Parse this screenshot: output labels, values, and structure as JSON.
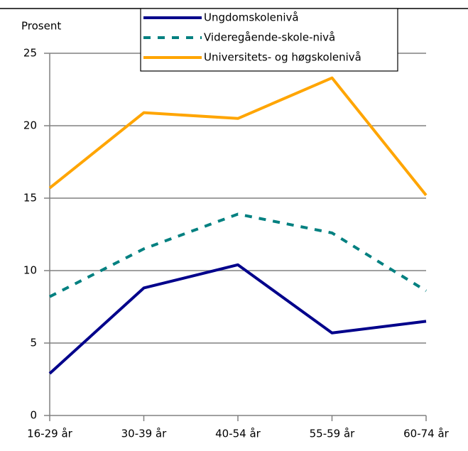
{
  "chart_data": {
    "type": "line",
    "y_label": "Prosent",
    "categories": [
      "16-29 år",
      "30-39 år",
      "40-54 år",
      "55-59 år",
      "60-74 år"
    ],
    "series": [
      {
        "name": "Ungdomskolenivå",
        "color": "#00008b",
        "dash": false,
        "values": [
          2.9,
          8.8,
          10.4,
          5.7,
          6.5
        ]
      },
      {
        "name": "Videregående-skole-nivå",
        "color": "#008080",
        "dash": true,
        "values": [
          8.2,
          11.5,
          13.9,
          12.6,
          8.6
        ]
      },
      {
        "name": "Universitets- og høgskolenivå",
        "color": "#ffa500",
        "dash": false,
        "values": [
          15.7,
          20.9,
          20.5,
          23.3,
          15.2
        ]
      }
    ],
    "ylim": [
      0,
      25
    ],
    "yticks": [
      0,
      5,
      10,
      15,
      20,
      25
    ],
    "grid": true,
    "legend": "top"
  }
}
